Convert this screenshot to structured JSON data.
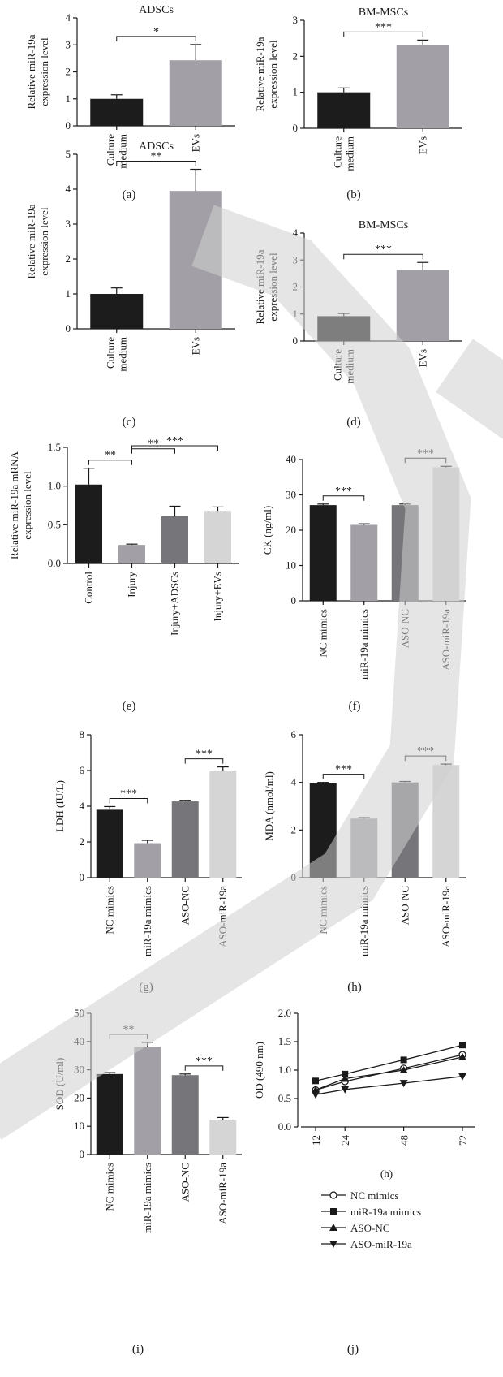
{
  "figure": {
    "panels": [
      {
        "key": "a",
        "label": "(a)",
        "title": "ADSCs",
        "ylabel_lines": [
          "Relative miR-19a",
          "expression level"
        ],
        "yticks": [
          "0",
          "1",
          "2",
          "3",
          "4"
        ],
        "xlabels": [
          [
            "Culture",
            "medium"
          ],
          [
            "EVs"
          ]
        ],
        "sig": [
          "*"
        ]
      },
      {
        "key": "b",
        "label": "(b)",
        "title": "BM-MSCs",
        "ylabel_lines": [
          "Relative miR-19a",
          "expression level"
        ],
        "yticks": [
          "0",
          "1",
          "2",
          "3"
        ],
        "xlabels": [
          [
            "Culture",
            "medium"
          ],
          [
            "EVs"
          ]
        ],
        "sig": [
          "***"
        ]
      },
      {
        "key": "c",
        "label": "(c)",
        "title": "ADSCs",
        "ylabel_lines": [
          "Relative miR-19a",
          "expression level"
        ],
        "yticks": [
          "0",
          "1",
          "2",
          "3",
          "4",
          "5"
        ],
        "xlabels": [
          [
            "Culture",
            "medium"
          ],
          [
            "EVs"
          ]
        ],
        "sig": [
          "**"
        ]
      },
      {
        "key": "d",
        "label": "(d)",
        "title": "BM-MSCs",
        "ylabel_lines": [
          "Relative miR-19a",
          "expression level"
        ],
        "yticks": [
          "0",
          "1",
          "2",
          "3",
          "4"
        ],
        "xlabels": [
          [
            "Culture",
            "medium"
          ],
          [
            "EVs"
          ]
        ],
        "sig": [
          "***"
        ]
      },
      {
        "key": "e",
        "label": "(e)",
        "title": "",
        "ylabel_lines": [
          "Relative miR-19a mRNA",
          "expression level"
        ],
        "yticks": [
          "0.0",
          "0.5",
          "1.0",
          "1.5"
        ],
        "xlabels": [
          [
            "Control"
          ],
          [
            "Injury"
          ],
          [
            "Injury+ADSCs"
          ],
          [
            "Injury+EVs"
          ]
        ],
        "sig": [
          "**",
          "**",
          "***"
        ]
      },
      {
        "key": "f",
        "label": "(f)",
        "title": "",
        "ylabel_lines": [
          "CK (ng/ml)"
        ],
        "yticks": [
          "0",
          "10",
          "20",
          "30",
          "40"
        ],
        "xlabels": [
          [
            "NC mimics"
          ],
          [
            "miR-19a mimics"
          ],
          [
            "ASO-NC"
          ],
          [
            "ASO-miR-19a"
          ]
        ],
        "sig": [
          "***",
          "***"
        ]
      },
      {
        "key": "g",
        "label": "(g)",
        "title": "",
        "ylabel_lines": [
          "LDH (IU/L)"
        ],
        "yticks": [
          "0",
          "2",
          "4",
          "6",
          "8"
        ],
        "xlabels": [
          [
            "NC mimics"
          ],
          [
            "miR-19a mimics"
          ],
          [
            "ASO-NC"
          ],
          [
            "ASO-miR-19a"
          ]
        ],
        "sig": [
          "***",
          "***"
        ]
      },
      {
        "key": "h",
        "label": "(h)",
        "title": "",
        "ylabel_lines": [
          "MDA (nmol/ml)"
        ],
        "yticks": [
          "0",
          "2",
          "4",
          "6"
        ],
        "xlabels": [
          [
            "NC mimics"
          ],
          [
            "miR-19a mimics"
          ],
          [
            "ASO-NC"
          ],
          [
            "ASO-miR-19a"
          ]
        ],
        "sig": [
          "***",
          "***"
        ]
      },
      {
        "key": "i",
        "label": "(i)",
        "title": "",
        "ylabel_lines": [
          "SOD (U/ml)"
        ],
        "yticks": [
          "0",
          "10",
          "20",
          "30",
          "40",
          "50"
        ],
        "xlabels": [
          [
            "NC mimics"
          ],
          [
            "miR-19a mimics"
          ],
          [
            "ASO-NC"
          ],
          [
            "ASO-miR-19a"
          ]
        ],
        "sig": [
          "**",
          "***"
        ]
      },
      {
        "key": "j",
        "label": "(j)",
        "title": "",
        "ylabel_lines": [
          "OD (490 nm)"
        ],
        "yticks": [
          "0.0",
          "0.5",
          "1.0",
          "1.5",
          "2.0"
        ],
        "xticks": [
          "12",
          "24",
          "48",
          "72"
        ],
        "xlabel": "(h)",
        "legend": [
          "NC mimics",
          "miR-19a mimics",
          "ASO-NC",
          "ASO-miR-19a"
        ]
      }
    ]
  },
  "colors": {
    "bar_black": "#1c1c1c",
    "bar_grey": "#a29fa6",
    "bar_darkgrey": "#76767a",
    "bar_lightgrey": "#d5d5d5",
    "watermark": "#cfcfcf",
    "ink": "#1a1a1a"
  },
  "chart_data": [
    {
      "id": "a",
      "type": "bar",
      "title": "ADSCs",
      "ylabel": "Relative miR-19a expression level",
      "ylim": [
        0,
        4
      ],
      "categories": [
        "Culture medium",
        "EVs"
      ],
      "values": [
        1.0,
        2.43
      ],
      "errors": [
        0.15,
        0.58
      ],
      "significance": [
        {
          "from": 0,
          "to": 1,
          "label": "*"
        }
      ]
    },
    {
      "id": "b",
      "type": "bar",
      "title": "BM-MSCs",
      "ylabel": "Relative miR-19a expression level",
      "ylim": [
        0,
        3
      ],
      "categories": [
        "Culture medium",
        "EVs"
      ],
      "values": [
        1.0,
        2.3
      ],
      "errors": [
        0.12,
        0.15
      ],
      "significance": [
        {
          "from": 0,
          "to": 1,
          "label": "***"
        }
      ]
    },
    {
      "id": "c",
      "type": "bar",
      "title": "ADSCs",
      "ylabel": "Relative miR-19a expression level",
      "ylim": [
        0,
        5
      ],
      "categories": [
        "Culture medium",
        "EVs"
      ],
      "values": [
        1.0,
        3.95
      ],
      "errors": [
        0.17,
        0.62
      ],
      "significance": [
        {
          "from": 0,
          "to": 1,
          "label": "**"
        }
      ]
    },
    {
      "id": "d",
      "type": "bar",
      "title": "BM-MSCs",
      "ylabel": "Relative miR-19a expression level",
      "ylim": [
        0,
        4
      ],
      "categories": [
        "Culture medium",
        "EVs"
      ],
      "values": [
        0.92,
        2.63
      ],
      "errors": [
        0.1,
        0.28
      ],
      "significance": [
        {
          "from": 0,
          "to": 1,
          "label": "***"
        }
      ]
    },
    {
      "id": "e",
      "type": "bar",
      "title": "",
      "ylabel": "Relative miR-19a mRNA expression level",
      "ylim": [
        0,
        1.5
      ],
      "categories": [
        "Control",
        "Injury",
        "Injury+ADSCs",
        "Injury+EVs"
      ],
      "values": [
        1.02,
        0.24,
        0.61,
        0.68
      ],
      "errors": [
        0.21,
        0.01,
        0.13,
        0.05
      ],
      "significance": [
        {
          "from": 0,
          "to": 1,
          "label": "**"
        },
        {
          "from": 1,
          "to": 2,
          "label": "**"
        },
        {
          "from": 1,
          "to": 3,
          "label": "***"
        }
      ]
    },
    {
      "id": "f",
      "type": "bar",
      "title": "",
      "ylabel": "CK (ng/ml)",
      "ylim": [
        0,
        40
      ],
      "categories": [
        "NC mimics",
        "miR-19a mimics",
        "ASO-NC",
        "ASO-miR-19a"
      ],
      "values": [
        27.1,
        21.5,
        27.1,
        37.8
      ],
      "errors": [
        0.3,
        0.3,
        0.3,
        0.3
      ],
      "significance": [
        {
          "from": 0,
          "to": 1,
          "label": "***"
        },
        {
          "from": 2,
          "to": 3,
          "label": "***"
        }
      ]
    },
    {
      "id": "g",
      "type": "bar",
      "title": "",
      "ylabel": "LDH (IU/L)",
      "ylim": [
        0,
        8
      ],
      "categories": [
        "NC mimics",
        "miR-19a mimics",
        "ASO-NC",
        "ASO-miR-19a"
      ],
      "values": [
        3.8,
        1.93,
        4.27,
        6.0
      ],
      "errors": [
        0.18,
        0.16,
        0.06,
        0.2
      ],
      "significance": [
        {
          "from": 0,
          "to": 1,
          "label": "***"
        },
        {
          "from": 2,
          "to": 3,
          "label": "***"
        }
      ]
    },
    {
      "id": "h",
      "type": "bar",
      "title": "",
      "ylabel": "MDA (nmol/ml)",
      "ylim": [
        0,
        6
      ],
      "categories": [
        "NC mimics",
        "miR-19a mimics",
        "ASO-NC",
        "ASO-miR-19a"
      ],
      "values": [
        3.96,
        2.48,
        4.0,
        4.73
      ],
      "errors": [
        0.04,
        0.04,
        0.04,
        0.04
      ],
      "significance": [
        {
          "from": 0,
          "to": 1,
          "label": "***"
        },
        {
          "from": 2,
          "to": 3,
          "label": "***"
        }
      ]
    },
    {
      "id": "i",
      "type": "bar",
      "title": "",
      "ylabel": "SOD (U/ml)",
      "ylim": [
        0,
        50
      ],
      "categories": [
        "NC mimics",
        "miR-19a mimics",
        "ASO-NC",
        "ASO-miR-19a"
      ],
      "values": [
        28.5,
        38.1,
        28.1,
        12.2
      ],
      "errors": [
        0.5,
        1.6,
        0.4,
        0.9
      ],
      "significance": [
        {
          "from": 0,
          "to": 1,
          "label": "**"
        },
        {
          "from": 2,
          "to": 3,
          "label": "***"
        }
      ]
    },
    {
      "id": "j",
      "type": "line",
      "title": "",
      "xlabel": "(h)",
      "ylabel": "OD (490 nm)",
      "ylim": [
        0,
        2.0
      ],
      "x": [
        12,
        24,
        48,
        72
      ],
      "series": [
        {
          "name": "NC mimics",
          "marker": "circle",
          "values": [
            0.65,
            0.8,
            1.03,
            1.27
          ]
        },
        {
          "name": "miR-19a mimics",
          "marker": "square",
          "values": [
            0.81,
            0.93,
            1.18,
            1.44
          ]
        },
        {
          "name": "ASO-NC",
          "marker": "triangle-up",
          "values": [
            0.65,
            0.85,
            1.0,
            1.23
          ]
        },
        {
          "name": "ASO-miR-19a",
          "marker": "triangle-down",
          "values": [
            0.57,
            0.66,
            0.77,
            0.89
          ]
        }
      ],
      "legend": "bottom"
    }
  ]
}
